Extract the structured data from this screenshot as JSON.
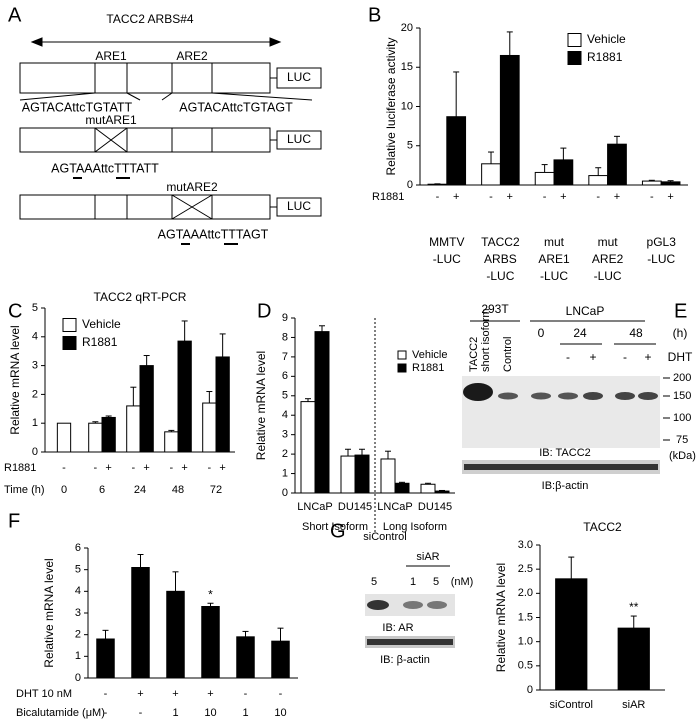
{
  "panel_labels": [
    "A",
    "B",
    "C",
    "D",
    "E",
    "F",
    "G"
  ],
  "panel_a": {
    "region": "TACC2 ARBS#4",
    "are_labels": [
      "ARE1",
      "ARE2"
    ],
    "reporter": "LUC",
    "wild_type_sequences": [
      "AGTACAttcTGTATT",
      "AGTACAttcTGTAGT"
    ],
    "mutants": [
      {
        "name": "mutARE1",
        "sequence": "AGTAAAttcTTTATT"
      },
      {
        "name": "mutARE2",
        "sequence": "AGTAAAttcTTTAGT"
      }
    ]
  },
  "chart_data": [
    {
      "type": "bar",
      "ylabel": "Relative luciferase activity",
      "categories": [
        [
          "MMTV",
          "-LUC"
        ],
        [
          "TACC2",
          "ARBS",
          "-LUC"
        ],
        [
          "mut",
          "ARE1",
          "-LUC"
        ],
        [
          "mut",
          "ARE2",
          "-LUC"
        ],
        [
          "pGL3",
          "-LUC"
        ]
      ],
      "series": [
        {
          "name": "Vehicle",
          "color": "#ffffff",
          "values": [
            0.1,
            2.7,
            1.6,
            1.2,
            0.5
          ],
          "errors": [
            0.05,
            1.5,
            1.0,
            1.0,
            0.1
          ]
        },
        {
          "name": "R1881",
          "color": "#000000",
          "values": [
            8.7,
            16.5,
            3.2,
            5.2,
            0.4
          ],
          "errors": [
            5.7,
            3.0,
            1.5,
            1.0,
            0.15
          ]
        }
      ],
      "treatment_rows": [
        {
          "label": "R1881",
          "signs": [
            [
              "-",
              "+"
            ],
            [
              "-",
              "+"
            ],
            [
              "-",
              "+"
            ],
            [
              "-",
              "+"
            ],
            [
              "-",
              "+"
            ]
          ]
        }
      ],
      "ylim": [
        0,
        20
      ],
      "yticks": [
        0,
        5,
        10,
        15,
        20
      ],
      "legend": "upper right"
    },
    {
      "type": "bar",
      "title": "TACC2 qRT-PCR",
      "ylabel": "Relative mRNA level",
      "categories": [
        "0",
        "6",
        "24",
        "48",
        "72"
      ],
      "xlabel": "Time (h)",
      "series": [
        {
          "name": "Vehicle",
          "color": "#ffffff",
          "values": [
            1.0,
            1.0,
            1.6,
            0.7,
            1.7
          ],
          "errors": [
            null,
            0.05,
            0.65,
            0.05,
            0.4
          ]
        },
        {
          "name": "R1881",
          "color": "#000000",
          "values": [
            null,
            1.2,
            3.0,
            3.85,
            3.3
          ],
          "errors": [
            null,
            0.05,
            0.35,
            0.7,
            0.8
          ]
        }
      ],
      "treatment_rows": [
        {
          "label": "R1881",
          "signs": [
            [
              "-"
            ],
            [
              "-",
              "+"
            ],
            [
              "-",
              "+"
            ],
            [
              "-",
              "+"
            ],
            [
              "-",
              "+"
            ]
          ]
        }
      ],
      "ylim": [
        0,
        5
      ],
      "yticks": [
        0,
        1,
        2,
        3,
        4,
        5
      ],
      "legend": "upper left"
    },
    {
      "type": "bar",
      "ylabel": "Relative mRNA level",
      "categories": [
        "LNCaP",
        "DU145",
        "LNCaP",
        "DU145"
      ],
      "group_labels": [
        "Short Isoform",
        "Long Isoform"
      ],
      "group_divider": true,
      "series": [
        {
          "name": "Vehicle",
          "color": "#ffffff",
          "values": [
            4.7,
            1.9,
            1.75,
            0.45
          ],
          "errors": [
            0.15,
            0.35,
            0.4,
            0.05
          ]
        },
        {
          "name": "R1881",
          "color": "#000000",
          "values": [
            8.3,
            1.95,
            0.5,
            0.1
          ],
          "errors": [
            0.3,
            0.3,
            0.05,
            0.03
          ]
        }
      ],
      "ylim": [
        0,
        9
      ],
      "yticks": [
        0,
        1,
        2,
        3,
        4,
        5,
        6,
        7,
        8,
        9
      ],
      "legend": "upper right"
    },
    {
      "type": "bar",
      "ylabel": "Relative mRNA level",
      "color": "#000000",
      "values": [
        1.8,
        5.1,
        4.0,
        3.3,
        1.9,
        1.7
      ],
      "errors": [
        0.4,
        0.6,
        0.9,
        0.15,
        0.25,
        0.6
      ],
      "treatment_rows": [
        {
          "label": "DHT 10 nM",
          "signs": [
            [
              "-"
            ],
            [
              "+"
            ],
            [
              "+"
            ],
            [
              "+"
            ],
            [
              "-"
            ],
            [
              "-"
            ]
          ]
        },
        {
          "label": "Bicalutamide (μM)",
          "signs": [
            [
              "-"
            ],
            [
              "-"
            ],
            [
              "1"
            ],
            [
              "10"
            ],
            [
              "1"
            ],
            [
              "10"
            ]
          ]
        }
      ],
      "annotations": [
        {
          "text": "*",
          "category": 3
        }
      ],
      "ylim": [
        0,
        6
      ],
      "yticks": [
        0,
        1,
        2,
        3,
        4,
        5,
        6
      ]
    },
    {
      "type": "bar",
      "title": "TACC2",
      "ylabel": "Relative mRNA level",
      "color": "#000000",
      "categories": [
        "siControl",
        "siAR"
      ],
      "values": [
        2.3,
        1.28
      ],
      "errors": [
        0.45,
        0.25
      ],
      "annotations": [
        {
          "text": "**",
          "category": 1
        }
      ],
      "ylim": [
        0,
        3
      ],
      "yticks": [
        0,
        0.5,
        {
          "value": 1.0,
          "label": "1.0"
        },
        1.5,
        {
          "value": 2.0,
          "label": "2.0"
        },
        2.5,
        {
          "value": 3.0,
          "label": "3.0"
        }
      ]
    }
  ],
  "panel_e": {
    "cell_lines": [
      "293T",
      "LNCaP"
    ],
    "lane_labels": [
      [
        "TACC2",
        "short isoform"
      ],
      "Control"
    ],
    "times": [
      "0",
      "24",
      "48"
    ],
    "time_unit": "(h)",
    "treatment": "DHT",
    "signs": [
      "-",
      "+",
      "-",
      "+"
    ],
    "mw_markers": [
      200,
      150,
      100,
      75
    ],
    "mw_unit": "(kDa)",
    "ib_labels": [
      "IB: TACC2",
      "IB:β-actin"
    ]
  },
  "panel_g_blot": {
    "samples": [
      "siControl",
      "siAR"
    ],
    "doses": [
      "5",
      "1",
      "5"
    ],
    "dose_unit": "(nM)",
    "ib_labels": [
      "IB: AR",
      "IB: β-actin"
    ]
  }
}
